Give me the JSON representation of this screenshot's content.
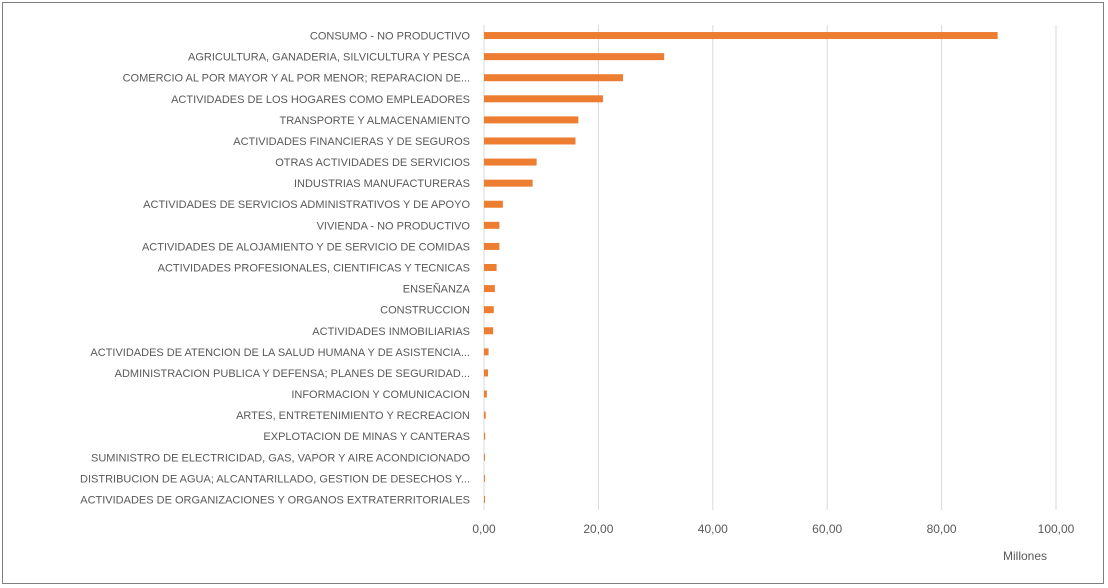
{
  "chart_data": {
    "type": "bar",
    "orientation": "horizontal",
    "categories": [
      "CONSUMO - NO PRODUCTIVO",
      "AGRICULTURA, GANADERIA, SILVICULTURA Y PESCA",
      "COMERCIO AL POR MAYOR Y AL POR MENOR; REPARACION DE...",
      "ACTIVIDADES DE LOS HOGARES COMO EMPLEADORES",
      "TRANSPORTE Y ALMACENAMIENTO",
      "ACTIVIDADES FINANCIERAS Y DE SEGUROS",
      "OTRAS ACTIVIDADES DE SERVICIOS",
      "INDUSTRIAS MANUFACTURERAS",
      "ACTIVIDADES DE SERVICIOS ADMINISTRATIVOS Y DE APOYO",
      "VIVIENDA - NO PRODUCTIVO",
      "ACTIVIDADES DE ALOJAMIENTO Y DE SERVICIO DE COMIDAS",
      "ACTIVIDADES PROFESIONALES, CIENTIFICAS Y TECNICAS",
      "ENSEÑANZA",
      "CONSTRUCCION",
      "ACTIVIDADES INMOBILIARIAS",
      "ACTIVIDADES DE ATENCION DE LA SALUD HUMANA Y DE ASISTENCIA...",
      "ADMINISTRACION PUBLICA Y DEFENSA; PLANES DE SEGURIDAD...",
      "INFORMACION Y COMUNICACION",
      "ARTES, ENTRETENIMIENTO Y RECREACION",
      "EXPLOTACION DE MINAS Y CANTERAS",
      "SUMINISTRO DE ELECTRICIDAD, GAS, VAPOR Y AIRE ACONDICIONADO",
      "DISTRIBUCION DE AGUA; ALCANTARILLADO, GESTION DE DESECHOS Y...",
      "ACTIVIDADES DE ORGANIZACIONES Y ORGANOS EXTRATERRITORIALES"
    ],
    "values": [
      89.8,
      31.5,
      24.3,
      20.8,
      16.5,
      16.0,
      9.2,
      8.5,
      3.3,
      2.7,
      2.7,
      2.2,
      1.9,
      1.7,
      1.6,
      0.8,
      0.7,
      0.5,
      0.3,
      0.2,
      0.15,
      0.1,
      0.05
    ],
    "xlim": [
      0,
      100
    ],
    "xticks": [
      0,
      20,
      40,
      60,
      80,
      100
    ],
    "xtick_labels": [
      "0,00",
      "20,00",
      "40,00",
      "60,00",
      "80,00",
      "100,00"
    ],
    "unit_label": "Millones",
    "grid": true,
    "bar_color": "#ed7d31"
  }
}
